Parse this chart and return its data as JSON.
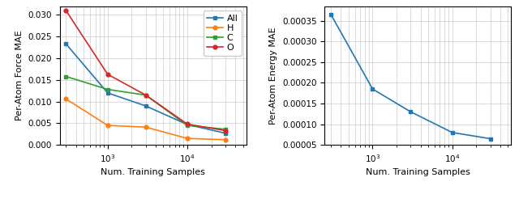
{
  "left_plot": {
    "ylabel": "Per-Atom Force MAE",
    "xlabel": "Num. Training Samples",
    "xlim": [
      250,
      55000
    ],
    "ylim": [
      0.0,
      0.032
    ],
    "yticks": [
      0.0,
      0.005,
      0.01,
      0.015,
      0.02,
      0.025,
      0.03
    ],
    "series": {
      "All": {
        "x": [
          300,
          1000,
          3000,
          10000,
          30000
        ],
        "y": [
          0.0233,
          0.012,
          0.009,
          0.0047,
          0.0027
        ],
        "color": "#1f77b4",
        "marker": "s"
      },
      "H": {
        "x": [
          300,
          1000,
          3000,
          10000,
          30000
        ],
        "y": [
          0.0106,
          0.0045,
          0.0041,
          0.0015,
          0.0012
        ],
        "color": "#ff7f0e",
        "marker": "o"
      },
      "C": {
        "x": [
          300,
          1000,
          3000,
          10000,
          30000
        ],
        "y": [
          0.0158,
          0.0128,
          0.0115,
          0.0045,
          0.0036
        ],
        "color": "#2ca02c",
        "marker": "s"
      },
      "O": {
        "x": [
          300,
          1000,
          3000,
          10000,
          30000
        ],
        "y": [
          0.031,
          0.0163,
          0.0115,
          0.0048,
          0.0033
        ],
        "color": "#d62728",
        "marker": "o"
      }
    }
  },
  "right_plot": {
    "ylabel": "Per-Atom Energy MAE",
    "xlabel": "Num. Training Samples",
    "xlim": [
      250,
      55000
    ],
    "ylim": [
      5e-05,
      0.000385
    ],
    "yticks": [
      5e-05,
      0.0001,
      0.00015,
      0.0002,
      0.00025,
      0.0003,
      0.00035
    ],
    "series": {
      "All": {
        "x": [
          300,
          1000,
          3000,
          10000,
          30000
        ],
        "y": [
          0.000365,
          0.000185,
          0.00013,
          8e-05,
          6.5e-05
        ],
        "color": "#1f77b4",
        "marker": "s"
      }
    }
  }
}
